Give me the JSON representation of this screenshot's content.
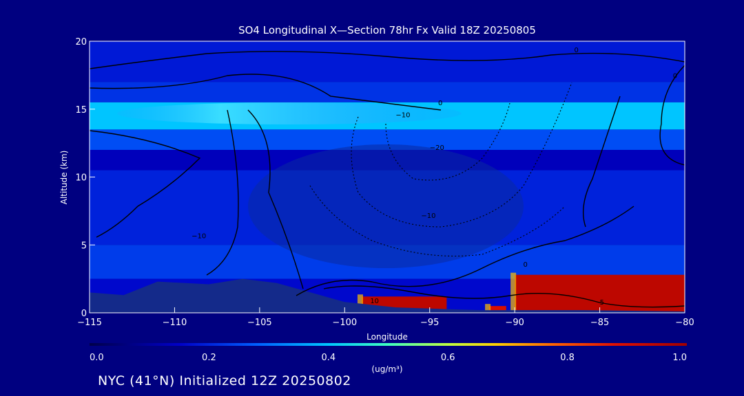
{
  "chart_data": {
    "type": "heatmap",
    "title": "SO4 Longitudinal X—Section 78hr  Fx Valid 18Z 20250805",
    "xlabel": "Longitude",
    "ylabel": "Altitude (km)",
    "xlim": [
      -115,
      -80
    ],
    "ylim": [
      0,
      20
    ],
    "x_ticks": [
      -115,
      -110,
      -105,
      -100,
      -95,
      -90,
      -85,
      -80
    ],
    "y_ticks": [
      0,
      5,
      10,
      15,
      20
    ],
    "colorbar": {
      "label": "(ug/m³)",
      "range": [
        0.0,
        1.0
      ],
      "ticks": [
        "0.0",
        "0.2",
        "0.4",
        "0.6",
        "0.8",
        "1.0"
      ],
      "colors": [
        "#00004a",
        "#0000c8",
        "#0060ff",
        "#00c8ff",
        "#40ffc0",
        "#c0ff40",
        "#ffd000",
        "#ff6000",
        "#e01000",
        "#a00000"
      ]
    },
    "layers": [
      {
        "from_alt": 17,
        "to_alt": 20,
        "value": 0.14
      },
      {
        "from_alt": 15.5,
        "to_alt": 17,
        "value": 0.17
      },
      {
        "from_alt": 13.5,
        "to_alt": 15.5,
        "value": 0.33
      },
      {
        "from_alt": 12,
        "to_alt": 13.5,
        "value": 0.2
      },
      {
        "from_alt": 10.5,
        "to_alt": 12,
        "value": 0.1
      },
      {
        "from_alt": 5,
        "to_alt": 10.5,
        "value": 0.15
      },
      {
        "from_alt": 2.5,
        "to_alt": 5,
        "value": 0.18
      },
      {
        "from_alt": 0,
        "to_alt": 2.5,
        "value": 0.12
      }
    ],
    "terrain": [
      {
        "lon": -115,
        "alt": 1.5
      },
      {
        "lon": -113,
        "alt": 1.3
      },
      {
        "lon": -111,
        "alt": 2.3
      },
      {
        "lon": -108,
        "alt": 2.1
      },
      {
        "lon": -106,
        "alt": 2.5
      },
      {
        "lon": -104,
        "alt": 2.2
      },
      {
        "lon": -102,
        "alt": 1.5
      },
      {
        "lon": -100,
        "alt": 0.8
      },
      {
        "lon": -97,
        "alt": 0.4
      },
      {
        "lon": -92,
        "alt": 0.2
      },
      {
        "lon": -86,
        "alt": 0.2
      },
      {
        "lon": -80,
        "alt": 0.1
      }
    ],
    "high_concentration_regions": [
      {
        "lon": [
          -99,
          -94
        ],
        "alt_top": 1.2,
        "value": 0.95
      },
      {
        "lon": [
          -91.5,
          -90.5
        ],
        "alt_top": 0.5,
        "value": 0.9
      },
      {
        "lon": [
          -90,
          -80
        ],
        "alt_top": 2.8,
        "value": 0.95
      }
    ],
    "contour_labels": [
      {
        "text": "0",
        "lon": -86.5,
        "alt": 19.2
      },
      {
        "text": "0",
        "lon": -94.5,
        "alt": 15.3
      },
      {
        "text": "−10",
        "lon": -97,
        "alt": 14.4
      },
      {
        "text": "−20",
        "lon": -95,
        "alt": 12
      },
      {
        "text": "−10",
        "lon": -109,
        "alt": 5.5
      },
      {
        "text": "−10",
        "lon": -95.5,
        "alt": 7
      },
      {
        "text": "0",
        "lon": -89.5,
        "alt": 3.4
      },
      {
        "text": "10",
        "lon": -98.5,
        "alt": 0.7
      },
      {
        "text": "5",
        "lon": -85,
        "alt": 0.6
      },
      {
        "text": "0",
        "lon": -80.7,
        "alt": 17.3
      }
    ]
  },
  "footer": {
    "text": "NYC (41°N) Initialized 12Z 20250802"
  },
  "colors": {
    "background": "#000080",
    "axes": "#ffffff",
    "contour": "#000000"
  }
}
